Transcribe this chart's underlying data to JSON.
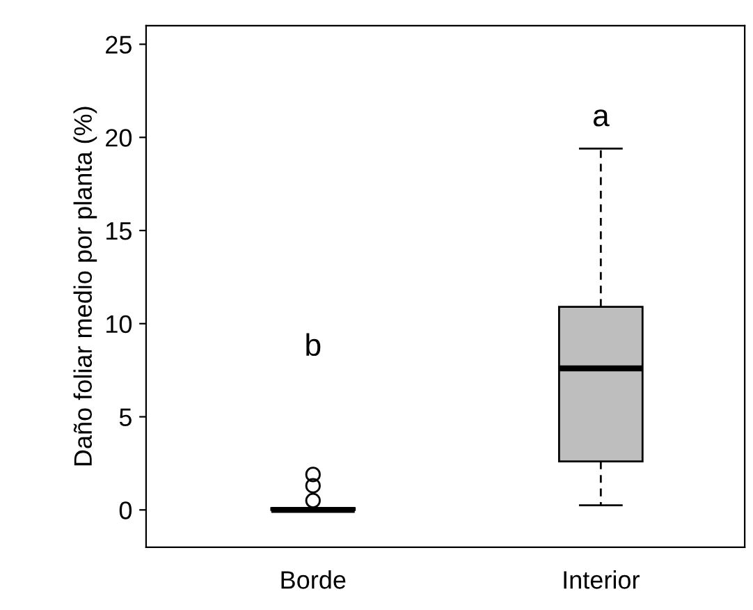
{
  "chart_data": {
    "type": "box",
    "ylabel": "Daño foliar medio por planta (%)",
    "categories": [
      "Borde",
      "Interior"
    ],
    "boxes": [
      {
        "low": 0,
        "q1": 0,
        "median": 0,
        "q3": 0.1,
        "high": 0.1,
        "outliers": [
          0.5,
          1.3,
          1.9
        ]
      },
      {
        "low": 0.25,
        "q1": 2.6,
        "median": 7.6,
        "q3": 10.9,
        "high": 19.4
      }
    ],
    "colors": [
      "#bebebe",
      "#bebebe"
    ],
    "ylim": [
      -2,
      26
    ],
    "yticks": [
      0,
      5,
      10,
      15,
      20,
      25
    ],
    "annotations": [
      "b",
      "a"
    ],
    "grid": false
  }
}
